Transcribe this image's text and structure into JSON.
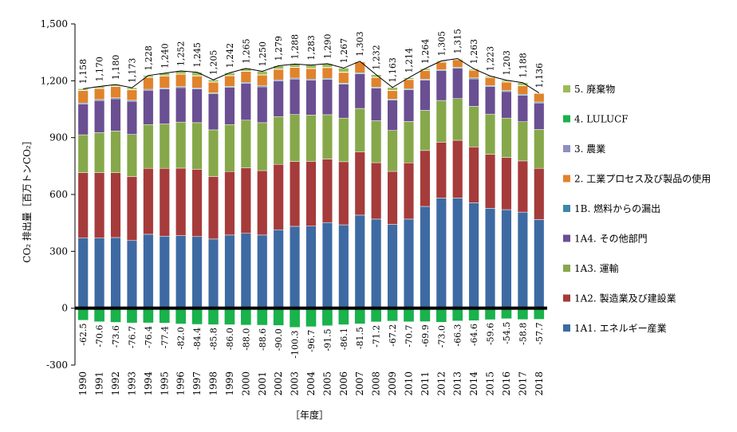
{
  "chart_data": {
    "type": "bar",
    "stacked": true,
    "xlabel": "［年度］",
    "ylabel": "CO₂ 排出量［百万トンCO₂］",
    "ylim": [
      -300,
      1500
    ],
    "yticks": [
      "1,500",
      "1,200",
      "900",
      "600",
      "300",
      "0",
      "-300"
    ],
    "ytick_values": [
      1500,
      1200,
      900,
      600,
      300,
      0,
      -300
    ],
    "categories": [
      "1990",
      "1991",
      "1992",
      "1993",
      "1994",
      "1995",
      "1996",
      "1997",
      "1998",
      "1999",
      "2000",
      "2001",
      "2002",
      "2003",
      "2004",
      "2005",
      "2006",
      "2007",
      "2008",
      "2009",
      "2010",
      "2011",
      "2012",
      "2013",
      "2014",
      "2015",
      "2016",
      "2017",
      "2018"
    ],
    "series": [
      {
        "name": "1A1. エネルギー産業",
        "color": "#3e6aa3",
        "values": [
          370,
          370,
          373,
          357,
          390,
          380,
          383,
          378,
          365,
          386,
          395,
          386,
          414,
          432,
          433,
          452,
          440,
          491,
          470,
          442,
          470,
          537,
          581,
          581,
          556,
          527,
          520,
          507,
          468
        ]
      },
      {
        "name": "1A2. 製造業及び建設業",
        "color": "#a63b3b",
        "values": [
          345,
          345,
          342,
          338,
          348,
          358,
          356,
          355,
          330,
          335,
          345,
          340,
          345,
          342,
          342,
          335,
          333,
          333,
          298,
          280,
          297,
          295,
          295,
          305,
          295,
          285,
          275,
          270,
          270
        ]
      },
      {
        "name": "1A3. 運輸",
        "color": "#86a84a",
        "values": [
          200,
          211,
          220,
          222,
          231,
          234,
          243,
          246,
          246,
          248,
          252,
          253,
          252,
          248,
          244,
          234,
          230,
          230,
          221,
          216,
          218,
          212,
          220,
          220,
          214,
          212,
          208,
          207,
          205
        ]
      },
      {
        "name": "1A4. その他部門",
        "color": "#6a4f92",
        "values": [
          163,
          170,
          170,
          175,
          181,
          185,
          182,
          178,
          190,
          196,
          195,
          189,
          189,
          187,
          185,
          187,
          179,
          183,
          172,
          160,
          168,
          159,
          157,
          160,
          145,
          145,
          140,
          140,
          140
        ]
      },
      {
        "name": "1B. 燃料からの漏出",
        "color": "#3d87a9",
        "values": [
          5,
          5,
          5,
          5,
          5,
          5,
          5,
          5,
          5,
          5,
          5,
          5,
          5,
          5,
          5,
          5,
          5,
          5,
          5,
          5,
          5,
          5,
          5,
          5,
          5,
          5,
          5,
          5,
          5
        ]
      },
      {
        "name": "2. 工業プロセス及び製品の使用",
        "color": "#e0832c",
        "values": [
          65,
          58,
          60,
          55,
          62,
          63,
          65,
          63,
          56,
          56,
          57,
          57,
          55,
          56,
          55,
          56,
          57,
          57,
          51,
          45,
          48,
          46,
          40,
          40,
          40,
          43,
          45,
          45,
          45
        ]
      },
      {
        "name": "3. 農業",
        "color": "#8d8fc1",
        "values": [
          2,
          2,
          2,
          2,
          2,
          2,
          2,
          2,
          2,
          2,
          2,
          2,
          2,
          2,
          2,
          2,
          2,
          2,
          2,
          2,
          2,
          2,
          2,
          2,
          2,
          2,
          2,
          2,
          2
        ]
      },
      {
        "name": "4. LULUCF",
        "color": "#19b24b",
        "values": [
          -62.5,
          -70.6,
          -73.6,
          -76.7,
          -76.4,
          -77.4,
          -82.0,
          -84.4,
          -85.8,
          -86.0,
          -88.0,
          -88.6,
          -90.0,
          -100.3,
          -96.7,
          -91.5,
          -86.1,
          -81.5,
          -71.2,
          -67.2,
          -70.7,
          -69.9,
          -73.0,
          -66.3,
          -64.6,
          -59.6,
          -54.5,
          -58.8,
          -57.7
        ]
      },
      {
        "name": "5. 廃棄物",
        "color": "#9bbb59",
        "values": [
          8,
          9,
          8,
          9,
          9,
          13,
          16,
          18,
          11,
          14,
          14,
          18,
          17,
          16,
          17,
          19,
          21,
          2,
          13,
          15,
          8,
          8,
          5,
          4,
          6,
          6,
          8,
          14,
          1
        ]
      }
    ],
    "total_labels": [
      "1,158",
      "1,170",
      "1,180",
      "1,173",
      "1,228",
      "1,240",
      "1,252",
      "1,245",
      "1,205",
      "1,242",
      "1,265",
      "1,250",
      "1,279",
      "1,288",
      "1,283",
      "1,290",
      "1,267",
      "1,303",
      "1,232",
      "1,163",
      "1,214",
      "1,264",
      "1,305",
      "1,315",
      "1,263",
      "1,223",
      "1,203",
      "1,188",
      "1,136"
    ],
    "totals": [
      1158,
      1170,
      1180,
      1173,
      1228,
      1240,
      1252,
      1245,
      1205,
      1242,
      1265,
      1250,
      1279,
      1288,
      1283,
      1290,
      1267,
      1303,
      1232,
      1163,
      1214,
      1264,
      1305,
      1315,
      1263,
      1223,
      1203,
      1188,
      1136
    ],
    "lulucf_labels": [
      "-62.5",
      "-70.6",
      "-73.6",
      "-76.7",
      "-76.4",
      "-77.4",
      "-82.0",
      "-84.4",
      "-85.8",
      "-86.0",
      "-88.0",
      "-88.6",
      "-90.0",
      "-100.3",
      "-96.7",
      "-91.5",
      "-86.1",
      "-81.5",
      "-71.2",
      "-67.2",
      "-70.7",
      "-69.9",
      "-73.0",
      "-66.3",
      "-64.6",
      "-59.6",
      "-54.5",
      "-58.8",
      "-57.7"
    ],
    "legend_position": "right",
    "legend_order": [
      "5. 廃棄物",
      "4. LULUCF",
      "3. 農業",
      "2. 工業プロセス及び製品の使用",
      "1B. 燃料からの漏出",
      "1A4. その他部門",
      "1A3. 運輸",
      "1A2. 製造業及び建設業",
      "1A1. エネルギー産業"
    ],
    "grid": false
  }
}
